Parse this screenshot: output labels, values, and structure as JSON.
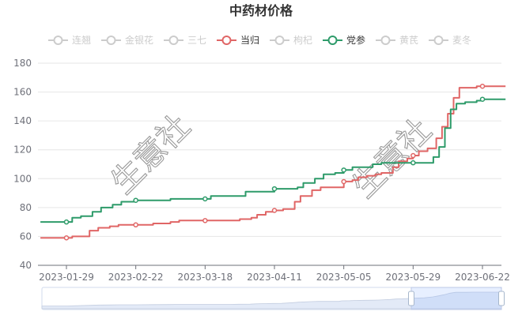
{
  "chart_data": {
    "type": "line",
    "title": "中药材价格",
    "xlabel": "",
    "ylabel": "",
    "ylim": [
      40,
      180
    ],
    "yticks": [
      40,
      60,
      80,
      100,
      120,
      140,
      160,
      180
    ],
    "xticks": [
      "2023-01-29",
      "2023-02-22",
      "2023-03-18",
      "2023-04-11",
      "2023-05-05",
      "2023-05-29",
      "2023-06-22"
    ],
    "grid": true,
    "legend_position": "top-center",
    "step": true,
    "legend": [
      {
        "name": "连翘",
        "active": false
      },
      {
        "name": "金银花",
        "active": false
      },
      {
        "name": "三七",
        "active": false
      },
      {
        "name": "当归",
        "active": true,
        "color": "#e06666"
      },
      {
        "name": "枸杞",
        "active": false
      },
      {
        "name": "党参",
        "active": true,
        "color": "#2e9b6a"
      },
      {
        "name": "黄芪",
        "active": false
      },
      {
        "name": "麦冬",
        "active": false
      }
    ],
    "inactive_color": "#cccccc",
    "watermark_text": "生意社",
    "series": [
      {
        "name": "当归",
        "color": "#e06666",
        "points": [
          [
            "2023-01-20",
            59
          ],
          [
            "2023-01-29",
            59
          ],
          [
            "2023-01-31",
            60
          ],
          [
            "2023-02-06",
            64
          ],
          [
            "2023-02-09",
            66
          ],
          [
            "2023-02-13",
            67
          ],
          [
            "2023-02-16",
            68
          ],
          [
            "2023-02-22",
            68
          ],
          [
            "2023-02-28",
            69
          ],
          [
            "2023-03-06",
            70
          ],
          [
            "2023-03-09",
            71
          ],
          [
            "2023-03-18",
            71
          ],
          [
            "2023-03-27",
            71
          ],
          [
            "2023-03-30",
            72
          ],
          [
            "2023-04-03",
            73
          ],
          [
            "2023-04-05",
            75
          ],
          [
            "2023-04-08",
            77
          ],
          [
            "2023-04-11",
            78
          ],
          [
            "2023-04-14",
            79
          ],
          [
            "2023-04-18",
            84
          ],
          [
            "2023-04-20",
            88
          ],
          [
            "2023-04-24",
            92
          ],
          [
            "2023-04-27",
            94
          ],
          [
            "2023-05-04",
            94
          ],
          [
            "2023-05-05",
            98
          ],
          [
            "2023-05-08",
            99
          ],
          [
            "2023-05-10",
            101
          ],
          [
            "2023-05-13",
            102
          ],
          [
            "2023-05-16",
            103
          ],
          [
            "2023-05-18",
            104
          ],
          [
            "2023-05-22",
            108
          ],
          [
            "2023-05-24",
            112
          ],
          [
            "2023-05-27",
            114
          ],
          [
            "2023-05-29",
            116
          ],
          [
            "2023-05-31",
            119
          ],
          [
            "2023-06-03",
            121
          ],
          [
            "2023-06-06",
            128
          ],
          [
            "2023-06-08",
            136
          ],
          [
            "2023-06-10",
            145
          ],
          [
            "2023-06-12",
            156
          ],
          [
            "2023-06-14",
            163
          ],
          [
            "2023-06-18",
            163
          ],
          [
            "2023-06-20",
            164
          ],
          [
            "2023-06-22",
            164
          ],
          [
            "2023-06-30",
            164
          ]
        ],
        "markers": [
          "2023-01-29",
          "2023-02-22",
          "2023-03-18",
          "2023-04-11",
          "2023-05-05",
          "2023-05-29",
          "2023-06-22"
        ]
      },
      {
        "name": "党参",
        "color": "#2e9b6a",
        "points": [
          [
            "2023-01-20",
            70
          ],
          [
            "2023-01-29",
            70
          ],
          [
            "2023-01-31",
            73
          ],
          [
            "2023-02-03",
            74
          ],
          [
            "2023-02-07",
            77
          ],
          [
            "2023-02-10",
            80
          ],
          [
            "2023-02-14",
            82
          ],
          [
            "2023-02-17",
            84
          ],
          [
            "2023-02-22",
            85
          ],
          [
            "2023-03-05",
            85
          ],
          [
            "2023-03-06",
            86
          ],
          [
            "2023-03-18",
            86
          ],
          [
            "2023-03-20",
            88
          ],
          [
            "2023-03-29",
            88
          ],
          [
            "2023-04-01",
            91
          ],
          [
            "2023-04-09",
            91
          ],
          [
            "2023-04-11",
            93
          ],
          [
            "2023-04-17",
            93
          ],
          [
            "2023-04-19",
            94
          ],
          [
            "2023-04-21",
            97
          ],
          [
            "2023-04-25",
            100
          ],
          [
            "2023-04-28",
            103
          ],
          [
            "2023-05-02",
            104
          ],
          [
            "2023-05-05",
            106
          ],
          [
            "2023-05-08",
            108
          ],
          [
            "2023-05-13",
            108
          ],
          [
            "2023-05-15",
            110
          ],
          [
            "2023-05-18",
            111
          ],
          [
            "2023-05-29",
            111
          ],
          [
            "2023-06-03",
            111
          ],
          [
            "2023-06-05",
            115
          ],
          [
            "2023-06-07",
            122
          ],
          [
            "2023-06-09",
            135
          ],
          [
            "2023-06-11",
            148
          ],
          [
            "2023-06-13",
            152
          ],
          [
            "2023-06-16",
            153
          ],
          [
            "2023-06-20",
            154
          ],
          [
            "2023-06-22",
            155
          ],
          [
            "2023-06-30",
            155
          ]
        ],
        "markers": [
          "2023-01-29",
          "2023-02-22",
          "2023-03-18",
          "2023-04-11",
          "2023-05-05",
          "2023-05-29",
          "2023-06-22"
        ]
      }
    ]
  }
}
